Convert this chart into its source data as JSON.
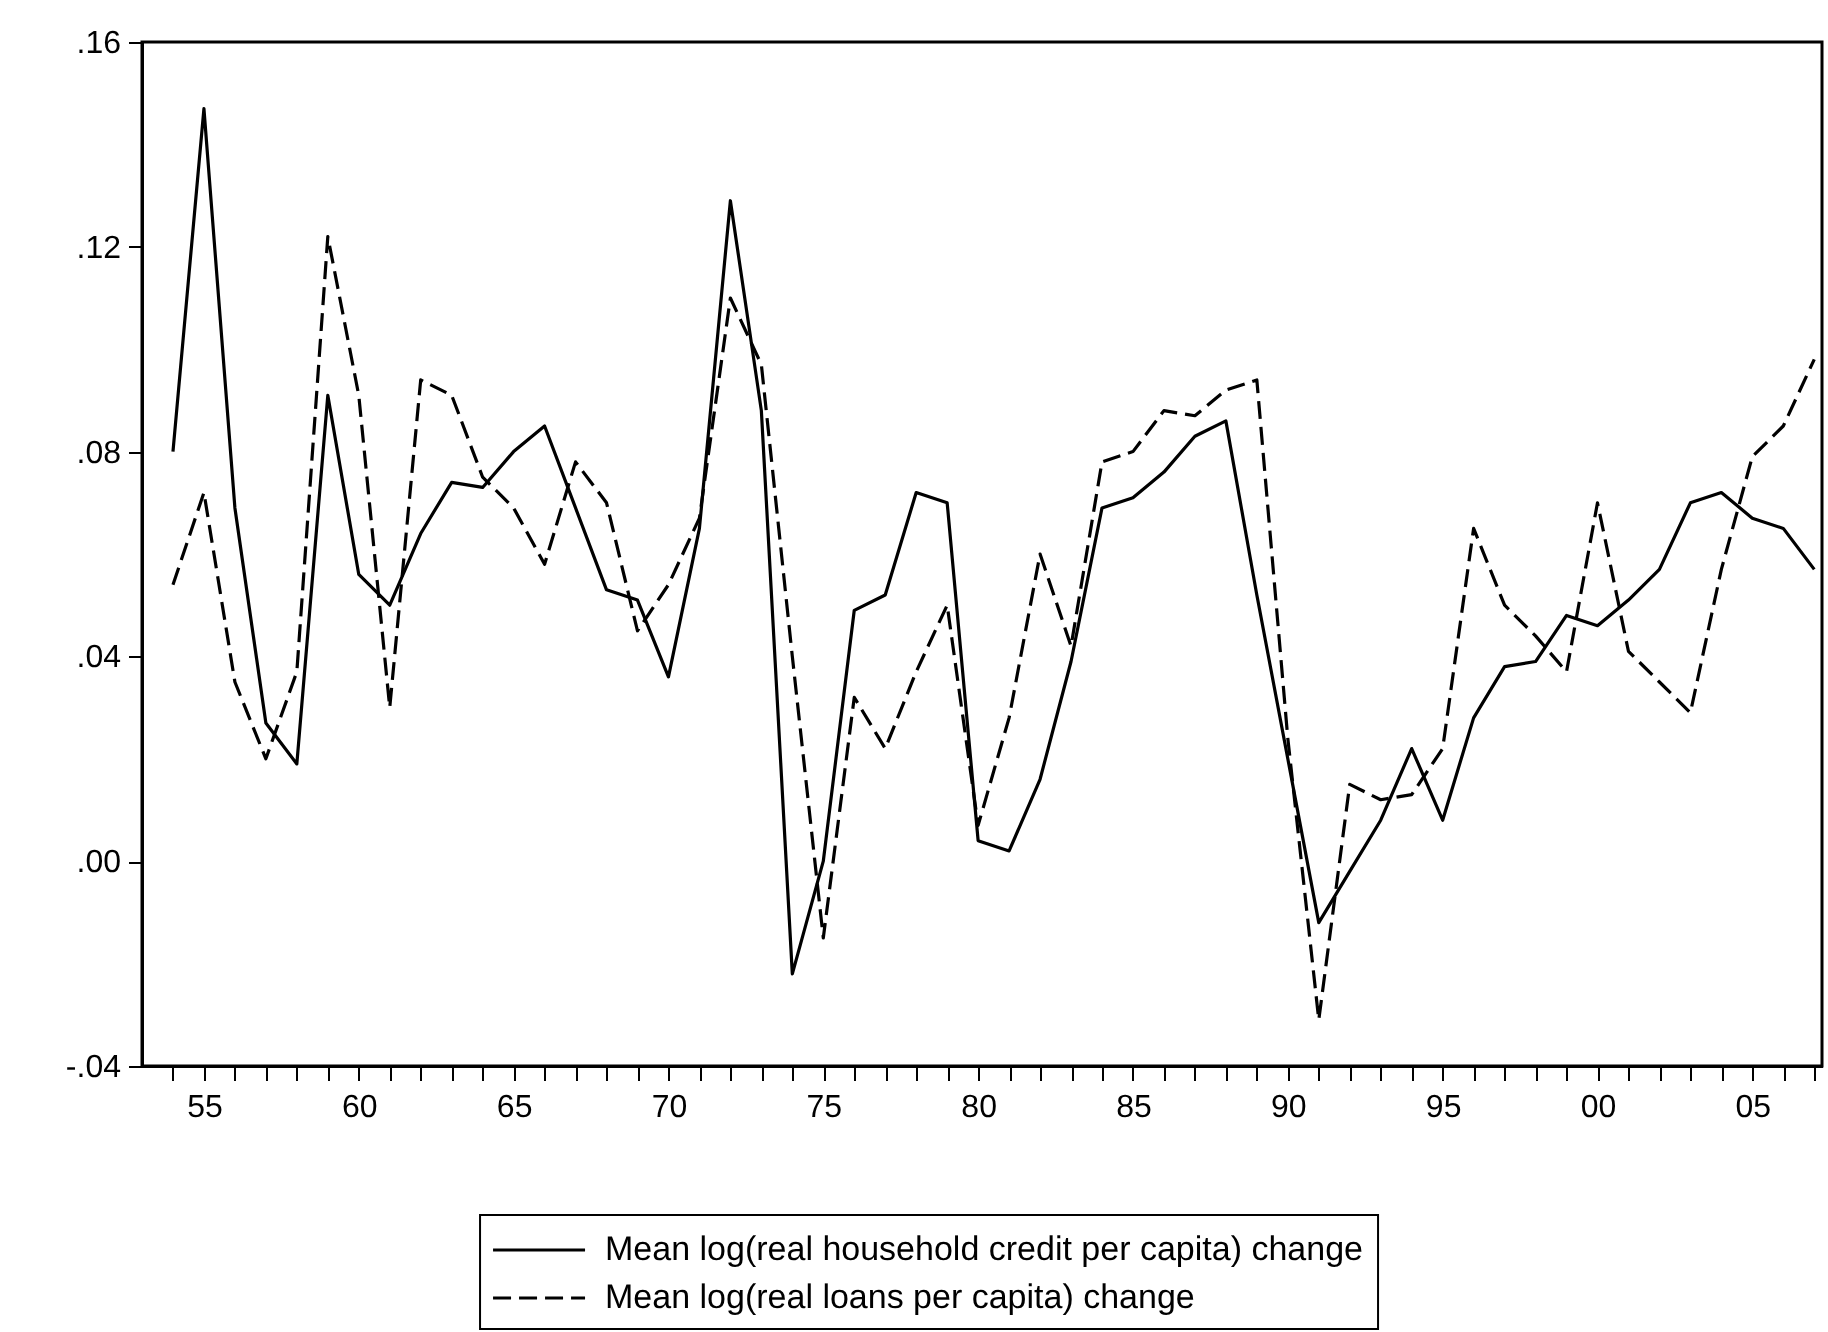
{
  "chart_data": {
    "type": "line",
    "x": [
      1954,
      1955,
      1956,
      1957,
      1958,
      1959,
      1960,
      1961,
      1962,
      1963,
      1964,
      1965,
      1966,
      1967,
      1968,
      1969,
      1970,
      1971,
      1972,
      1973,
      1974,
      1975,
      1976,
      1977,
      1978,
      1979,
      1980,
      1981,
      1982,
      1983,
      1984,
      1985,
      1986,
      1987,
      1988,
      1989,
      1990,
      1991,
      1992,
      1993,
      1994,
      1995,
      1996,
      1997,
      1998,
      1999,
      2000,
      2001,
      2002,
      2003,
      2004,
      2005,
      2006,
      2007
    ],
    "series": [
      {
        "name": "Mean log(real household credit per capita) change",
        "color": "#000000",
        "line_style": "solid",
        "values": [
          0.08,
          0.147,
          0.069,
          0.027,
          0.019,
          0.091,
          0.056,
          0.05,
          0.064,
          0.074,
          0.073,
          0.08,
          0.085,
          0.069,
          0.053,
          0.051,
          0.036,
          0.065,
          0.129,
          0.088,
          -0.022,
          0.0,
          0.049,
          0.052,
          0.072,
          0.07,
          0.004,
          0.002,
          0.016,
          0.039,
          0.069,
          0.071,
          0.076,
          0.083,
          0.086,
          0.052,
          0.02,
          -0.012,
          -0.002,
          0.008,
          0.022,
          0.008,
          0.028,
          0.038,
          0.039,
          0.048,
          0.046,
          0.051,
          0.057,
          0.07,
          0.072,
          0.067,
          0.065,
          0.057
        ]
      },
      {
        "name": "Mean log(real loans per capita) change",
        "color": "#000000",
        "line_style": "dashed",
        "values": [
          0.054,
          0.072,
          0.035,
          0.02,
          0.037,
          0.122,
          0.091,
          0.03,
          0.094,
          0.091,
          0.075,
          0.069,
          0.058,
          0.078,
          0.07,
          0.045,
          0.054,
          0.067,
          0.11,
          0.097,
          0.04,
          -0.015,
          0.032,
          0.022,
          0.037,
          0.05,
          0.007,
          0.028,
          0.06,
          0.042,
          0.078,
          0.08,
          0.088,
          0.087,
          0.092,
          0.094,
          0.024,
          -0.031,
          0.015,
          0.012,
          0.013,
          0.022,
          0.065,
          0.05,
          0.044,
          0.037,
          0.07,
          0.041,
          0.035,
          0.029,
          0.057,
          0.079,
          0.085,
          0.098
        ]
      }
    ],
    "xlim": [
      1953,
      2007.25
    ],
    "xticks": [
      {
        "value": 1954,
        "label": null
      },
      {
        "value": 1955,
        "label": "55"
      },
      {
        "value": 1956,
        "label": null
      },
      {
        "value": 1957,
        "label": null
      },
      {
        "value": 1958,
        "label": null
      },
      {
        "value": 1959,
        "label": null
      },
      {
        "value": 1960,
        "label": "60"
      },
      {
        "value": 1961,
        "label": null
      },
      {
        "value": 1962,
        "label": null
      },
      {
        "value": 1963,
        "label": null
      },
      {
        "value": 1964,
        "label": null
      },
      {
        "value": 1965,
        "label": "65"
      },
      {
        "value": 1966,
        "label": null
      },
      {
        "value": 1967,
        "label": null
      },
      {
        "value": 1968,
        "label": null
      },
      {
        "value": 1969,
        "label": null
      },
      {
        "value": 1970,
        "label": "70"
      },
      {
        "value": 1971,
        "label": null
      },
      {
        "value": 1972,
        "label": null
      },
      {
        "value": 1973,
        "label": null
      },
      {
        "value": 1974,
        "label": null
      },
      {
        "value": 1975,
        "label": "75"
      },
      {
        "value": 1976,
        "label": null
      },
      {
        "value": 1977,
        "label": null
      },
      {
        "value": 1978,
        "label": null
      },
      {
        "value": 1979,
        "label": null
      },
      {
        "value": 1980,
        "label": "80"
      },
      {
        "value": 1981,
        "label": null
      },
      {
        "value": 1982,
        "label": null
      },
      {
        "value": 1983,
        "label": null
      },
      {
        "value": 1984,
        "label": null
      },
      {
        "value": 1985,
        "label": "85"
      },
      {
        "value": 1986,
        "label": null
      },
      {
        "value": 1987,
        "label": null
      },
      {
        "value": 1988,
        "label": null
      },
      {
        "value": 1989,
        "label": null
      },
      {
        "value": 1990,
        "label": "90"
      },
      {
        "value": 1991,
        "label": null
      },
      {
        "value": 1992,
        "label": null
      },
      {
        "value": 1993,
        "label": null
      },
      {
        "value": 1994,
        "label": null
      },
      {
        "value": 1995,
        "label": "95"
      },
      {
        "value": 1996,
        "label": null
      },
      {
        "value": 1997,
        "label": null
      },
      {
        "value": 1998,
        "label": null
      },
      {
        "value": 1999,
        "label": null
      },
      {
        "value": 2000,
        "label": "00"
      },
      {
        "value": 2001,
        "label": null
      },
      {
        "value": 2002,
        "label": null
      },
      {
        "value": 2003,
        "label": null
      },
      {
        "value": 2004,
        "label": null
      },
      {
        "value": 2005,
        "label": "05"
      },
      {
        "value": 2006,
        "label": null
      },
      {
        "value": 2007,
        "label": null
      }
    ],
    "ylim": [
      -0.04,
      0.16
    ],
    "yticks": [
      {
        "value": -0.04,
        "label": "-.04"
      },
      {
        "value": 0,
        "label": ".00"
      },
      {
        "value": 0.04,
        "label": ".04"
      },
      {
        "value": 0.08,
        "label": ".08"
      },
      {
        "value": 0.12,
        "label": ".12"
      },
      {
        "value": 0.16,
        "label": ".16"
      }
    ],
    "legend": "bottom"
  }
}
